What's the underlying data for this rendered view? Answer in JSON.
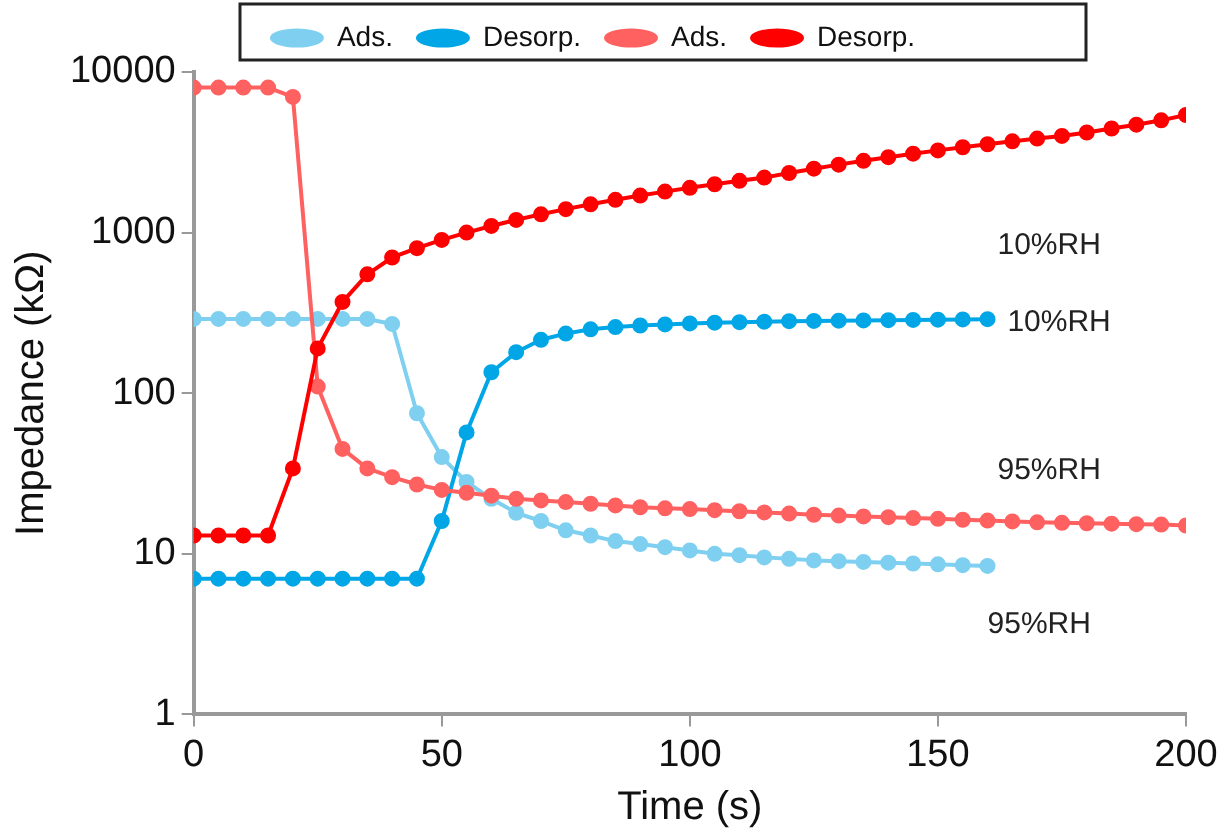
{
  "chart_data": {
    "type": "line",
    "xlabel": "Time (s)",
    "ylabel": "Impedance (kΩ)",
    "xlim": [
      0,
      200
    ],
    "xticks": [
      0,
      50,
      100,
      150,
      200
    ],
    "ylim": [
      1,
      10000
    ],
    "yticks": [
      1,
      10,
      100,
      1000,
      10000
    ],
    "log": "y",
    "grid": false,
    "legend": "top",
    "marker": "circle",
    "line_style": "solid",
    "x": [
      0,
      5,
      10,
      15,
      20,
      25,
      30,
      35,
      40,
      45,
      50,
      55,
      60,
      65,
      70,
      75,
      80,
      85,
      90,
      95,
      100,
      105,
      110,
      115,
      120,
      125,
      130,
      135,
      140,
      145,
      150,
      155,
      160,
      165,
      170,
      175,
      180,
      185,
      190,
      195,
      200
    ],
    "series": [
      {
        "name": "Ads.",
        "color": "#7fd0f0",
        "x": [
          0,
          5,
          10,
          15,
          20,
          25,
          30,
          35,
          40,
          45,
          50,
          55,
          60,
          65,
          70,
          75,
          80,
          85,
          90,
          95,
          100,
          105,
          110,
          115,
          120,
          125,
          130,
          135,
          140,
          145,
          150,
          155,
          160
        ],
        "values": [
          290,
          290,
          290,
          290,
          290,
          290,
          290,
          290,
          270,
          75,
          40,
          28,
          22,
          18,
          16,
          14,
          13,
          12,
          11.5,
          11,
          10.5,
          10,
          9.8,
          9.5,
          9.3,
          9.1,
          9,
          8.9,
          8.8,
          8.7,
          8.6,
          8.5,
          8.4
        ]
      },
      {
        "name": "Desorp.",
        "color": "#00a6e6",
        "x": [
          0,
          5,
          10,
          15,
          20,
          25,
          30,
          35,
          40,
          45,
          50,
          55,
          60,
          65,
          70,
          75,
          80,
          85,
          90,
          95,
          100,
          105,
          110,
          115,
          120,
          125,
          130,
          135,
          140,
          145,
          150,
          155,
          160
        ],
        "values": [
          7,
          7,
          7,
          7,
          7,
          7,
          7,
          7,
          7,
          7,
          16,
          57,
          135,
          180,
          215,
          235,
          250,
          258,
          264,
          268,
          272,
          275,
          277,
          279,
          281,
          282,
          283,
          284,
          285,
          286,
          287,
          288,
          289
        ]
      },
      {
        "name": "Ads.",
        "color": "#ff6060",
        "values": [
          8000,
          8000,
          8000,
          8000,
          7000,
          110,
          45,
          34,
          30,
          27,
          25,
          24,
          23,
          22,
          21.5,
          21,
          20.5,
          20,
          19.5,
          19.2,
          19,
          18.7,
          18.4,
          18.1,
          17.8,
          17.5,
          17.3,
          17.1,
          16.9,
          16.7,
          16.5,
          16.3,
          16.1,
          15.9,
          15.7,
          15.6,
          15.5,
          15.4,
          15.3,
          15.2,
          15
        ]
      },
      {
        "name": "Desorp.",
        "color": "#ff0000",
        "values": [
          13,
          13,
          13,
          13,
          34,
          190,
          370,
          550,
          700,
          800,
          900,
          1000,
          1100,
          1200,
          1300,
          1400,
          1500,
          1600,
          1700,
          1800,
          1900,
          2000,
          2100,
          2200,
          2350,
          2500,
          2650,
          2800,
          2950,
          3100,
          3250,
          3400,
          3550,
          3700,
          3850,
          4000,
          4200,
          4450,
          4700,
          5000,
          5400
        ]
      }
    ],
    "annotations": [
      "10%RH",
      "10%RH",
      "95%RH",
      "95%RH"
    ]
  }
}
